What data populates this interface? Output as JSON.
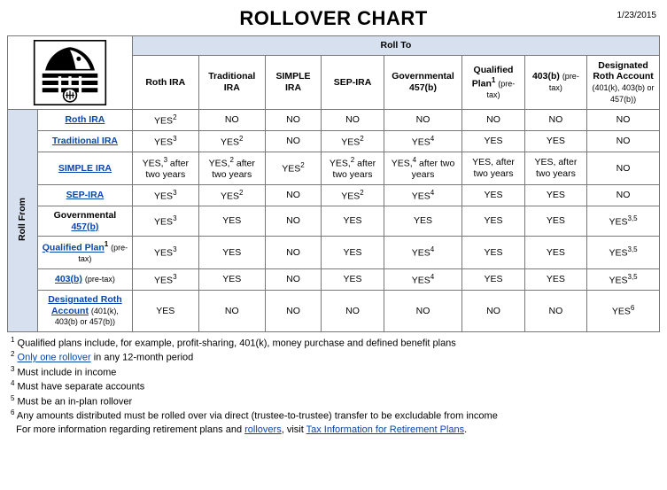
{
  "title": "ROLLOVER CHART",
  "date": "1/23/2015",
  "roll_to": "Roll To",
  "roll_from": "Roll From",
  "col_heads": [
    {
      "html": "Roth IRA"
    },
    {
      "html": "Traditional IRA"
    },
    {
      "html": "SIMPLE IRA"
    },
    {
      "html": "SEP-IRA"
    },
    {
      "html": "Governmental 457(b)"
    },
    {
      "html": "Qualified Plan<sup>1</sup> <span class='sub'>(pre-tax)</span>"
    },
    {
      "html": "403(b) <span class='sub'>(pre-tax)</span>"
    },
    {
      "html": "Designated Roth Account <span class='sub'>(401(k), 403(b) or 457(b))</span>"
    }
  ],
  "row_heads": [
    {
      "html": "<a class='lk' href='#'>Roth IRA</a>"
    },
    {
      "html": "<a class='lk' href='#'>Traditional IRA</a>"
    },
    {
      "html": "<a class='lk' href='#'>SIMPLE IRA</a>"
    },
    {
      "html": "<a class='lk' href='#'>SEP-IRA</a>"
    },
    {
      "html": "Governmental <a class='lk' href='#'>457(b)</a>"
    },
    {
      "html": "<a class='lk' href='#'>Qualified Plan</a><sup>1</sup> <span class='sub'>(pre-tax)</span>"
    },
    {
      "html": "<a class='lk' href='#'>403(b)</a> <span class='sub'>(pre-tax)</span>"
    },
    {
      "html": "<a class='lk' href='#'>Designated Roth Account</a> <span class='sub'>(401(k), 403(b) or 457(b))</span>"
    }
  ],
  "cells": [
    [
      "YES<sup>2</sup>",
      "NO",
      "NO",
      "NO",
      "NO",
      "NO",
      "NO",
      "NO"
    ],
    [
      "YES<sup>3</sup>",
      "YES<sup>2</sup>",
      "NO",
      "YES<sup>2</sup>",
      "YES<sup>4</sup>",
      "YES",
      "YES",
      "NO"
    ],
    [
      "YES,<sup>3</sup> after two years",
      "YES,<sup>2</sup> after two years",
      "YES<sup>2</sup>",
      "YES,<sup>2</sup> after two years",
      "YES,<sup>4</sup> after two years",
      "YES, after two years",
      "YES, after two years",
      "NO"
    ],
    [
      "YES<sup>3</sup>",
      "YES<sup>2</sup>",
      "NO",
      "YES<sup>2</sup>",
      "YES<sup>4</sup>",
      "YES",
      "YES",
      "NO"
    ],
    [
      "YES<sup>3</sup>",
      "YES",
      "NO",
      "YES",
      "YES",
      "YES",
      "YES",
      "YES<sup>3,5</sup>"
    ],
    [
      "YES<sup>3</sup>",
      "YES",
      "NO",
      "YES",
      "YES<sup>4</sup>",
      "YES",
      "YES",
      "YES<sup>3,5</sup>"
    ],
    [
      "YES<sup>3</sup>",
      "YES",
      "NO",
      "YES",
      "YES<sup>4</sup>",
      "YES",
      "YES",
      "YES<sup>3,5</sup>"
    ],
    [
      "YES",
      "NO",
      "NO",
      "NO",
      "NO",
      "NO",
      "NO",
      "YES<sup>6</sup>"
    ]
  ],
  "footnotes": [
    "<sup>1</sup> Qualified plans include, for example, profit-sharing, 401(k), money purchase and defined benefit plans",
    "<sup>2</sup> <a class='lk' href='#'>Only one rollover</a> in any 12-month period",
    "<sup>3</sup> Must include in income",
    "<sup>4</sup> Must have separate accounts",
    "<sup>5</sup> Must be an in-plan rollover",
    "<sup>6</sup> Any amounts distributed must be rolled over via direct (trustee-to-trustee) transfer to be excludable from income",
    "&nbsp;&nbsp;For more information regarding retirement plans and <a class='lk' href='#'>rollovers</a>, visit <a class='lk' href='#'>Tax Information for Retirement Plans</a>."
  ],
  "colors": {
    "header_bg": "#d6e0ee",
    "link": "#0645ad",
    "border": "#777777"
  }
}
